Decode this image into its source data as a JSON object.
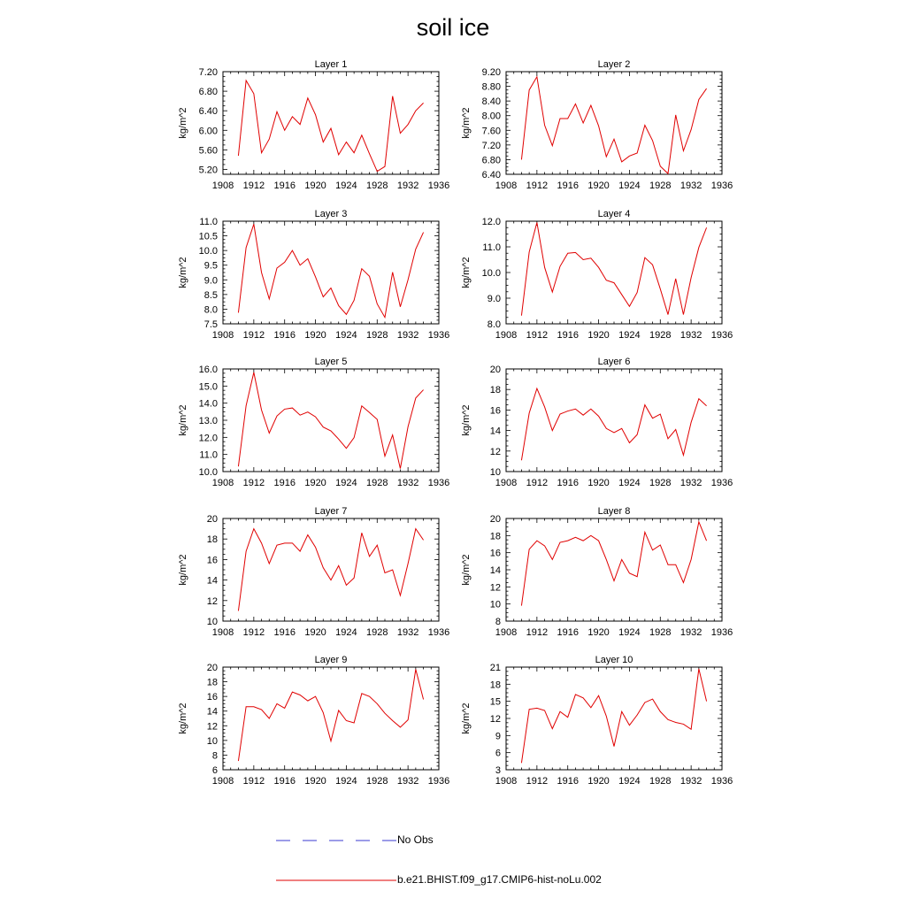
{
  "title": "soil ice",
  "legend": [
    {
      "label": "No Obs",
      "color": "#3a3ad0",
      "style": "dashed"
    },
    {
      "label": "b.e21.BHIST.f09_g17.CMIP6-hist-noLu.002",
      "color": "#e00000",
      "style": "solid"
    }
  ],
  "chart_data": [
    {
      "type": "line",
      "title": "Layer 1",
      "xlabel": "",
      "ylabel": "kg/m^2",
      "xlim": [
        1908,
        1936
      ],
      "ylim": [
        5.1,
        7.2
      ],
      "xticks": [
        "1908",
        "1912",
        "1916",
        "1920",
        "1924",
        "1928",
        "1932",
        "1936"
      ],
      "yticks": [
        "5.20",
        "5.60",
        "6.00",
        "6.40",
        "6.80",
        "7.20"
      ],
      "x": [
        1910,
        1911,
        1912,
        1913,
        1914,
        1915,
        1916,
        1917,
        1918,
        1919,
        1920,
        1921,
        1922,
        1923,
        1924,
        1925,
        1926,
        1927,
        1928,
        1929,
        1930,
        1931,
        1932,
        1933,
        1934
      ],
      "series": [
        {
          "name": "b.e21.BHIST.f09_g17.CMIP6-hist-noLu.002",
          "values": [
            5.48,
            7.02,
            6.75,
            5.54,
            5.82,
            6.38,
            6.0,
            6.28,
            6.12,
            6.66,
            6.32,
            5.76,
            6.04,
            5.5,
            5.76,
            5.54,
            5.9,
            5.52,
            5.16,
            5.26,
            6.7,
            5.94,
            6.12,
            6.4,
            6.56
          ]
        }
      ]
    },
    {
      "type": "line",
      "title": "Layer 2",
      "xlabel": "",
      "ylabel": "kg/m^2",
      "xlim": [
        1908,
        1936
      ],
      "ylim": [
        6.4,
        9.2
      ],
      "xticks": [
        "1908",
        "1912",
        "1916",
        "1920",
        "1924",
        "1928",
        "1932",
        "1936"
      ],
      "yticks": [
        "6.40",
        "6.80",
        "7.20",
        "7.60",
        "8.00",
        "8.40",
        "8.80",
        "9.20"
      ],
      "x": [
        1910,
        1911,
        1912,
        1913,
        1914,
        1915,
        1916,
        1917,
        1918,
        1919,
        1920,
        1921,
        1922,
        1923,
        1924,
        1925,
        1926,
        1927,
        1928,
        1929,
        1930,
        1931,
        1932,
        1933,
        1934
      ],
      "series": [
        {
          "name": "b.e21.BHIST.f09_g17.CMIP6-hist-noLu.002",
          "values": [
            6.8,
            8.7,
            9.06,
            7.74,
            7.18,
            7.92,
            7.92,
            8.32,
            7.8,
            8.28,
            7.72,
            6.88,
            7.36,
            6.74,
            6.9,
            6.98,
            7.74,
            7.32,
            6.62,
            6.42,
            8.02,
            7.04,
            7.62,
            8.44,
            8.74
          ]
        }
      ]
    },
    {
      "type": "line",
      "title": "Layer 3",
      "xlabel": "",
      "ylabel": "kg/m^2",
      "xlim": [
        1908,
        1936
      ],
      "ylim": [
        7.5,
        11.0
      ],
      "xticks": [
        "1908",
        "1912",
        "1916",
        "1920",
        "1924",
        "1928",
        "1932",
        "1936"
      ],
      "yticks": [
        "7.5",
        "8.0",
        "8.5",
        "9.0",
        "9.5",
        "10.0",
        "10.5",
        "11.0"
      ],
      "x": [
        1910,
        1911,
        1912,
        1913,
        1914,
        1915,
        1916,
        1917,
        1918,
        1919,
        1920,
        1921,
        1922,
        1923,
        1924,
        1925,
        1926,
        1927,
        1928,
        1929,
        1930,
        1931,
        1932,
        1933,
        1934
      ],
      "series": [
        {
          "name": "b.e21.BHIST.f09_g17.CMIP6-hist-noLu.002",
          "values": [
            7.88,
            10.1,
            10.9,
            9.25,
            8.35,
            9.4,
            9.6,
            10.0,
            9.5,
            9.72,
            9.1,
            8.42,
            8.72,
            8.12,
            7.82,
            8.3,
            9.38,
            9.12,
            8.18,
            7.72,
            9.26,
            8.08,
            9.0,
            10.05,
            10.62
          ]
        }
      ]
    },
    {
      "type": "line",
      "title": "Layer 4",
      "xlabel": "",
      "ylabel": "kg/m^2",
      "xlim": [
        1908,
        1936
      ],
      "ylim": [
        8.0,
        12.0
      ],
      "xticks": [
        "1908",
        "1912",
        "1916",
        "1920",
        "1924",
        "1928",
        "1932",
        "1936"
      ],
      "yticks": [
        "8.0",
        "9.0",
        "10.0",
        "11.0",
        "12.0"
      ],
      "x": [
        1910,
        1911,
        1912,
        1913,
        1914,
        1915,
        1916,
        1917,
        1918,
        1919,
        1920,
        1921,
        1922,
        1923,
        1924,
        1925,
        1926,
        1927,
        1928,
        1929,
        1930,
        1931,
        1932,
        1933,
        1934
      ],
      "series": [
        {
          "name": "b.e21.BHIST.f09_g17.CMIP6-hist-noLu.002",
          "values": [
            8.32,
            10.8,
            11.95,
            10.2,
            9.24,
            10.24,
            10.75,
            10.78,
            10.5,
            10.56,
            10.2,
            9.7,
            9.6,
            9.14,
            8.68,
            9.22,
            10.58,
            10.3,
            9.36,
            8.36,
            9.76,
            8.36,
            9.8,
            10.98,
            11.75
          ]
        }
      ]
    },
    {
      "type": "line",
      "title": "Layer 5",
      "xlabel": "",
      "ylabel": "kg/m^2",
      "xlim": [
        1908,
        1936
      ],
      "ylim": [
        10.0,
        16.0
      ],
      "xticks": [
        "1908",
        "1912",
        "1916",
        "1920",
        "1924",
        "1928",
        "1932",
        "1936"
      ],
      "yticks": [
        "10.0",
        "11.0",
        "12.0",
        "13.0",
        "14.0",
        "15.0",
        "16.0"
      ],
      "x": [
        1910,
        1911,
        1912,
        1913,
        1914,
        1915,
        1916,
        1917,
        1918,
        1919,
        1920,
        1921,
        1922,
        1923,
        1924,
        1925,
        1926,
        1927,
        1928,
        1929,
        1930,
        1931,
        1932,
        1933,
        1934
      ],
      "series": [
        {
          "name": "b.e21.BHIST.f09_g17.CMIP6-hist-noLu.002",
          "values": [
            10.3,
            13.85,
            15.8,
            13.6,
            12.25,
            13.25,
            13.65,
            13.72,
            13.3,
            13.48,
            13.2,
            12.6,
            12.38,
            11.9,
            11.36,
            11.98,
            13.84,
            13.45,
            13.05,
            10.9,
            12.14,
            10.18,
            12.62,
            14.3,
            14.78
          ]
        }
      ]
    },
    {
      "type": "line",
      "title": "Layer 6",
      "xlabel": "",
      "ylabel": "kg/m^2",
      "xlim": [
        1908,
        1936
      ],
      "ylim": [
        10,
        20
      ],
      "xticks": [
        "1908",
        "1912",
        "1916",
        "1920",
        "1924",
        "1928",
        "1932",
        "1936"
      ],
      "yticks": [
        "10",
        "12",
        "14",
        "16",
        "18",
        "20"
      ],
      "x": [
        1910,
        1911,
        1912,
        1913,
        1914,
        1915,
        1916,
        1917,
        1918,
        1919,
        1920,
        1921,
        1922,
        1923,
        1924,
        1925,
        1926,
        1927,
        1928,
        1929,
        1930,
        1931,
        1932,
        1933,
        1934
      ],
      "series": [
        {
          "name": "b.e21.BHIST.f09_g17.CMIP6-hist-noLu.002",
          "values": [
            11.1,
            15.7,
            18.1,
            16.3,
            14.0,
            15.6,
            15.9,
            16.1,
            15.5,
            16.1,
            15.4,
            14.2,
            13.8,
            14.2,
            12.8,
            13.6,
            16.5,
            15.2,
            15.6,
            13.2,
            14.1,
            11.6,
            14.8,
            17.1,
            16.4
          ]
        }
      ]
    },
    {
      "type": "line",
      "title": "Layer 7",
      "xlabel": "",
      "ylabel": "kg/m^2",
      "xlim": [
        1908,
        1936
      ],
      "ylim": [
        10,
        20
      ],
      "xticks": [
        "1908",
        "1912",
        "1916",
        "1920",
        "1924",
        "1928",
        "1932",
        "1936"
      ],
      "yticks": [
        "10",
        "12",
        "14",
        "16",
        "18",
        "20"
      ],
      "x": [
        1910,
        1911,
        1912,
        1913,
        1914,
        1915,
        1916,
        1917,
        1918,
        1919,
        1920,
        1921,
        1922,
        1923,
        1924,
        1925,
        1926,
        1927,
        1928,
        1929,
        1930,
        1931,
        1932,
        1933,
        1934
      ],
      "series": [
        {
          "name": "b.e21.BHIST.f09_g17.CMIP6-hist-noLu.002",
          "values": [
            11.0,
            16.8,
            19.0,
            17.6,
            15.6,
            17.4,
            17.6,
            17.6,
            16.8,
            18.4,
            17.2,
            15.2,
            14.0,
            15.4,
            13.5,
            14.2,
            18.6,
            16.3,
            17.4,
            14.7,
            15.0,
            12.5,
            15.6,
            19.0,
            17.9
          ]
        }
      ]
    },
    {
      "type": "line",
      "title": "Layer 8",
      "xlabel": "",
      "ylabel": "kg/m^2",
      "xlim": [
        1908,
        1936
      ],
      "ylim": [
        8,
        20
      ],
      "xticks": [
        "1908",
        "1912",
        "1916",
        "1920",
        "1924",
        "1928",
        "1932",
        "1936"
      ],
      "yticks": [
        "8",
        "10",
        "12",
        "14",
        "16",
        "18",
        "20"
      ],
      "x": [
        1910,
        1911,
        1912,
        1913,
        1914,
        1915,
        1916,
        1917,
        1918,
        1919,
        1920,
        1921,
        1922,
        1923,
        1924,
        1925,
        1926,
        1927,
        1928,
        1929,
        1930,
        1931,
        1932,
        1933,
        1934
      ],
      "series": [
        {
          "name": "b.e21.BHIST.f09_g17.CMIP6-hist-noLu.002",
          "values": [
            9.8,
            16.4,
            17.4,
            16.8,
            15.2,
            17.2,
            17.4,
            17.8,
            17.4,
            18.0,
            17.4,
            15.2,
            12.7,
            15.2,
            13.6,
            13.2,
            18.4,
            16.3,
            16.9,
            14.6,
            14.6,
            12.5,
            15.2,
            19.6,
            17.4
          ]
        }
      ]
    },
    {
      "type": "line",
      "title": "Layer 9",
      "xlabel": "",
      "ylabel": "kg/m^2",
      "xlim": [
        1908,
        1936
      ],
      "ylim": [
        6,
        20
      ],
      "xticks": [
        "1908",
        "1912",
        "1916",
        "1920",
        "1924",
        "1928",
        "1932",
        "1936"
      ],
      "yticks": [
        "6",
        "8",
        "10",
        "12",
        "14",
        "16",
        "18",
        "20"
      ],
      "x": [
        1910,
        1911,
        1912,
        1913,
        1914,
        1915,
        1916,
        1917,
        1918,
        1919,
        1920,
        1921,
        1922,
        1923,
        1924,
        1925,
        1926,
        1927,
        1928,
        1929,
        1930,
        1931,
        1932,
        1933,
        1934
      ],
      "series": [
        {
          "name": "b.e21.BHIST.f09_g17.CMIP6-hist-noLu.002",
          "values": [
            7.2,
            14.6,
            14.6,
            14.2,
            13.0,
            15.0,
            14.4,
            16.6,
            16.2,
            15.4,
            16.0,
            13.8,
            9.9,
            14.1,
            12.7,
            12.4,
            16.4,
            16.0,
            15.0,
            13.7,
            12.7,
            11.8,
            12.8,
            19.7,
            15.6
          ]
        }
      ]
    },
    {
      "type": "line",
      "title": "Layer 10",
      "xlabel": "",
      "ylabel": "kg/m^2",
      "xlim": [
        1908,
        1936
      ],
      "ylim": [
        3,
        21
      ],
      "xticks": [
        "1908",
        "1912",
        "1916",
        "1920",
        "1924",
        "1928",
        "1932",
        "1936"
      ],
      "yticks": [
        "3",
        "6",
        "9",
        "12",
        "15",
        "18",
        "21"
      ],
      "x": [
        1910,
        1911,
        1912,
        1913,
        1914,
        1915,
        1916,
        1917,
        1918,
        1919,
        1920,
        1921,
        1922,
        1923,
        1924,
        1925,
        1926,
        1927,
        1928,
        1929,
        1930,
        1931,
        1932,
        1933,
        1934
      ],
      "series": [
        {
          "name": "b.e21.BHIST.f09_g17.CMIP6-hist-noLu.002",
          "values": [
            4.2,
            13.6,
            13.8,
            13.4,
            10.2,
            13.2,
            12.2,
            16.2,
            15.6,
            13.9,
            16.0,
            12.4,
            7.1,
            13.2,
            10.8,
            12.6,
            14.8,
            15.4,
            13.2,
            11.8,
            11.3,
            11.0,
            10.1,
            20.7,
            15.0
          ]
        }
      ]
    }
  ]
}
